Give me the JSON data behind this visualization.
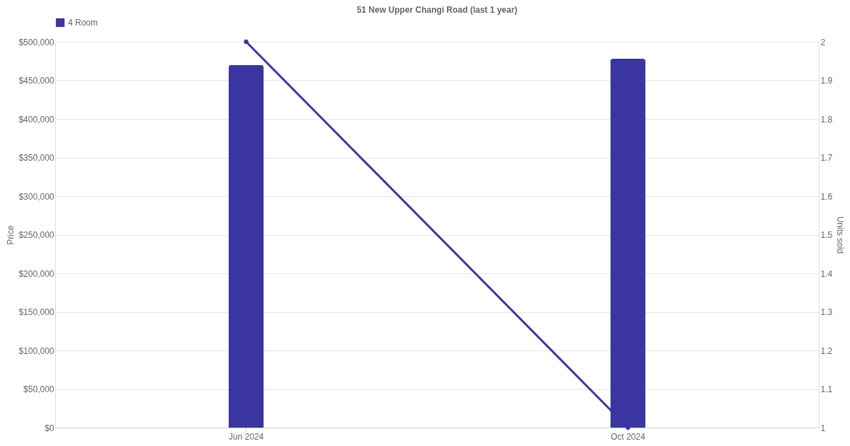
{
  "chart_data": {
    "type": "bar",
    "title": "51 New Upper Changi Road (last 1 year)",
    "ylabel": "Price",
    "y2label": "Units sold",
    "categories": [
      "Jun 2024",
      "Oct 2024"
    ],
    "series": [
      {
        "name": "4 Room",
        "color": "#3a35a0",
        "values": [
          470000,
          478000
        ]
      },
      {
        "type": "line",
        "axis": "y2",
        "color": "#3a35a0",
        "values": [
          2,
          1
        ]
      }
    ],
    "ylim": [
      0,
      500000
    ],
    "yticks": [
      {
        "value": 0,
        "label": "$0"
      },
      {
        "value": 50000,
        "label": "$50,000"
      },
      {
        "value": 100000,
        "label": "$100,000"
      },
      {
        "value": 150000,
        "label": "$150,000"
      },
      {
        "value": 200000,
        "label": "$200,000"
      },
      {
        "value": 250000,
        "label": "$250,000"
      },
      {
        "value": 300000,
        "label": "$300,000"
      },
      {
        "value": 350000,
        "label": "$350,000"
      },
      {
        "value": 400000,
        "label": "$400,000"
      },
      {
        "value": 450000,
        "label": "$450,000"
      },
      {
        "value": 500000,
        "label": "$500,000"
      }
    ],
    "y2lim": [
      1,
      2
    ],
    "y2ticks": [
      1,
      1.1,
      1.2,
      1.3,
      1.4,
      1.5,
      1.6,
      1.7,
      1.8,
      1.9,
      2
    ],
    "grid": "y",
    "legend": "top",
    "marker": "circle",
    "line_style": "solid"
  }
}
